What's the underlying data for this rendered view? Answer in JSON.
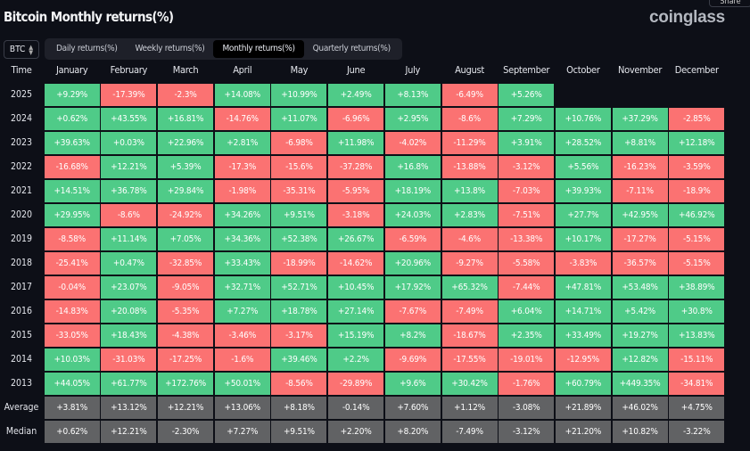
{
  "title": "Bitcoin Monthly returns(%)",
  "logo": "coinglass",
  "share_label": "Share",
  "coin_select": {
    "value": "BTC",
    "icon": "chevron-up-down-icon"
  },
  "tabs": [
    {
      "label": "Daily returns(%)",
      "active": false
    },
    {
      "label": "Weekly returns(%)",
      "active": false
    },
    {
      "label": "Monthly returns(%)",
      "active": true
    },
    {
      "label": "Quarterly returns(%)",
      "active": false
    }
  ],
  "colors": {
    "positive": "#4fcb88",
    "negative": "#fb7272",
    "summary": "#616264"
  },
  "table": {
    "headers": [
      "Time",
      "January",
      "February",
      "March",
      "April",
      "May",
      "June",
      "July",
      "August",
      "September",
      "October",
      "November",
      "December"
    ],
    "rows": [
      {
        "year": "2025",
        "values": [
          "+9.29%",
          "-17.39%",
          "-2.3%",
          "+14.08%",
          "+10.99%",
          "+2.49%",
          "+8.13%",
          "-6.49%",
          "+5.26%",
          "",
          "",
          ""
        ]
      },
      {
        "year": "2024",
        "values": [
          "+0.62%",
          "+43.55%",
          "+16.81%",
          "-14.76%",
          "+11.07%",
          "-6.96%",
          "+2.95%",
          "-8.6%",
          "+7.29%",
          "+10.76%",
          "+37.29%",
          "-2.85%"
        ]
      },
      {
        "year": "2023",
        "values": [
          "+39.63%",
          "+0.03%",
          "+22.96%",
          "+2.81%",
          "-6.98%",
          "+11.98%",
          "-4.02%",
          "-11.29%",
          "+3.91%",
          "+28.52%",
          "+8.81%",
          "+12.18%"
        ]
      },
      {
        "year": "2022",
        "values": [
          "-16.68%",
          "+12.21%",
          "+5.39%",
          "-17.3%",
          "-15.6%",
          "-37.28%",
          "+16.8%",
          "-13.88%",
          "-3.12%",
          "+5.56%",
          "-16.23%",
          "-3.59%"
        ]
      },
      {
        "year": "2021",
        "values": [
          "+14.51%",
          "+36.78%",
          "+29.84%",
          "-1.98%",
          "-35.31%",
          "-5.95%",
          "+18.19%",
          "+13.8%",
          "-7.03%",
          "+39.93%",
          "-7.11%",
          "-18.9%"
        ]
      },
      {
        "year": "2020",
        "values": [
          "+29.95%",
          "-8.6%",
          "-24.92%",
          "+34.26%",
          "+9.51%",
          "-3.18%",
          "+24.03%",
          "+2.83%",
          "-7.51%",
          "+27.7%",
          "+42.95%",
          "+46.92%"
        ]
      },
      {
        "year": "2019",
        "values": [
          "-8.58%",
          "+11.14%",
          "+7.05%",
          "+34.36%",
          "+52.38%",
          "+26.67%",
          "-6.59%",
          "-4.6%",
          "-13.38%",
          "+10.17%",
          "-17.27%",
          "-5.15%"
        ]
      },
      {
        "year": "2018",
        "values": [
          "-25.41%",
          "+0.47%",
          "-32.85%",
          "+33.43%",
          "-18.99%",
          "-14.62%",
          "+20.96%",
          "-9.27%",
          "-5.58%",
          "-3.83%",
          "-36.57%",
          "-5.15%"
        ]
      },
      {
        "year": "2017",
        "values": [
          "-0.04%",
          "+23.07%",
          "-9.05%",
          "+32.71%",
          "+52.71%",
          "+10.45%",
          "+17.92%",
          "+65.32%",
          "-7.44%",
          "+47.81%",
          "+53.48%",
          "+38.89%"
        ]
      },
      {
        "year": "2016",
        "values": [
          "-14.83%",
          "+20.08%",
          "-5.35%",
          "+7.27%",
          "+18.78%",
          "+27.14%",
          "-7.67%",
          "-7.49%",
          "+6.04%",
          "+14.71%",
          "+5.42%",
          "+30.8%"
        ]
      },
      {
        "year": "2015",
        "values": [
          "-33.05%",
          "+18.43%",
          "-4.38%",
          "-3.46%",
          "-3.17%",
          "+15.19%",
          "+8.2%",
          "-18.67%",
          "+2.35%",
          "+33.49%",
          "+19.27%",
          "+13.83%"
        ]
      },
      {
        "year": "2014",
        "values": [
          "+10.03%",
          "-31.03%",
          "-17.25%",
          "-1.6%",
          "+39.46%",
          "+2.2%",
          "-9.69%",
          "-17.55%",
          "-19.01%",
          "-12.95%",
          "+12.82%",
          "-15.11%"
        ]
      },
      {
        "year": "2013",
        "values": [
          "+44.05%",
          "+61.77%",
          "+172.76%",
          "+50.01%",
          "-8.56%",
          "-29.89%",
          "+9.6%",
          "+30.42%",
          "-1.76%",
          "+60.79%",
          "+449.35%",
          "-34.81%"
        ]
      }
    ],
    "summary": [
      {
        "year": "Average",
        "values": [
          "+3.81%",
          "+13.12%",
          "+12.21%",
          "+13.06%",
          "+8.18%",
          "-0.14%",
          "+7.60%",
          "+1.12%",
          "-3.08%",
          "+21.89%",
          "+46.02%",
          "+4.75%"
        ]
      },
      {
        "year": "Median",
        "values": [
          "+0.62%",
          "+12.21%",
          "-2.30%",
          "+7.27%",
          "+9.51%",
          "+2.20%",
          "+8.20%",
          "-7.49%",
          "-3.12%",
          "+21.20%",
          "+10.82%",
          "-3.22%"
        ]
      }
    ]
  }
}
